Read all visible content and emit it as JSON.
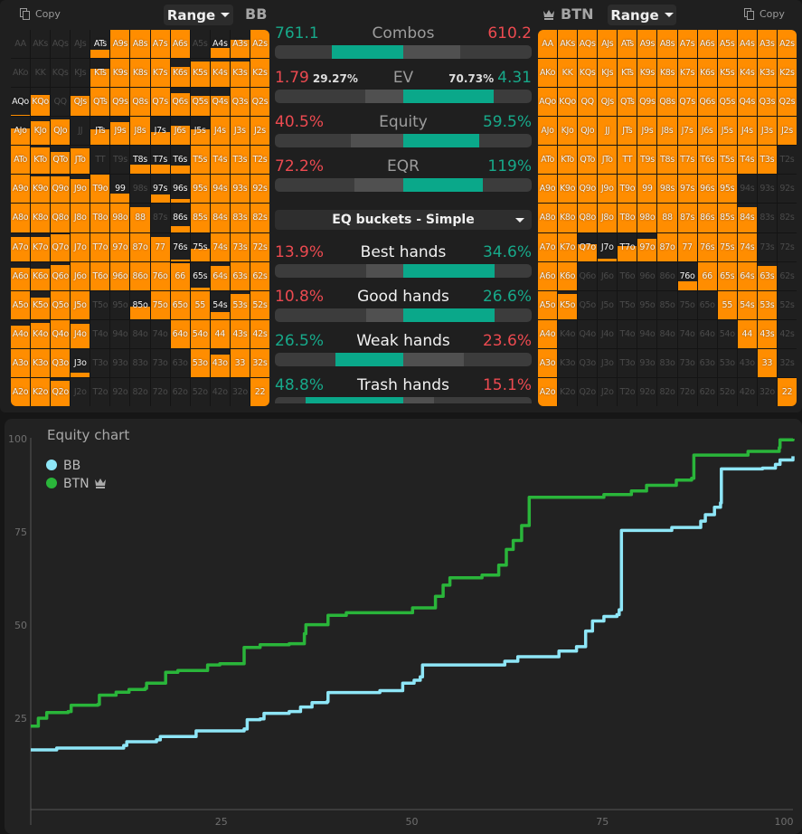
{
  "left": {
    "copy_label": "Copy",
    "range_label": "Range",
    "position": "BB",
    "copy_icon": "copy-icon",
    "fills": [
      [
        0,
        0,
        0,
        0,
        0.3,
        1,
        1,
        1,
        1,
        0,
        0.35,
        0.65,
        1
      ],
      [
        0,
        0,
        0,
        0,
        0.65,
        1,
        1,
        1,
        0.7,
        0.9,
        0.9,
        0.9,
        1
      ],
      [
        0.05,
        0.75,
        0,
        0.7,
        1,
        1,
        1,
        1,
        0.8,
        0.7,
        0.7,
        1,
        1
      ],
      [
        0.6,
        0.85,
        0.9,
        0,
        0.55,
        0.8,
        1,
        0.45,
        0.7,
        0.55,
        1,
        1,
        1
      ],
      [
        1,
        0.95,
        0.8,
        0.9,
        0,
        0,
        0.35,
        0.35,
        0.3,
        1,
        1,
        1,
        1
      ],
      [
        1,
        0.95,
        0.95,
        0.85,
        1,
        0.35,
        0,
        0.3,
        0.15,
        1,
        1,
        1,
        1
      ],
      [
        1,
        1,
        1,
        1,
        1,
        1,
        0.9,
        0,
        0.2,
        1,
        1,
        1,
        1
      ],
      [
        0.85,
        0.85,
        0.95,
        1,
        1,
        1,
        1,
        0.85,
        0.05,
        0.45,
        1,
        1,
        1
      ],
      [
        0.8,
        0.75,
        0.9,
        1,
        1,
        1,
        1,
        1,
        0.95,
        0.1,
        0.85,
        1,
        1
      ],
      [
        1,
        0.75,
        1,
        1,
        0,
        0,
        0.45,
        1,
        1,
        1,
        0.25,
        0.9,
        1
      ],
      [
        0.8,
        0.9,
        1,
        0.85,
        0,
        0,
        0,
        0,
        1,
        1,
        1,
        1,
        1
      ],
      [
        1,
        1,
        1,
        0.15,
        0,
        0,
        0,
        0,
        0,
        1,
        0.8,
        1,
        1
      ],
      [
        1,
        1,
        0.9,
        0,
        0,
        0,
        0,
        0,
        0,
        0,
        0,
        0,
        1
      ]
    ]
  },
  "right": {
    "copy_label": "Copy",
    "range_label": "Range",
    "position": "BTN",
    "crown_icon": "crown-icon",
    "fills": [
      [
        1,
        1,
        1,
        1,
        1,
        1,
        1,
        1,
        1,
        1,
        1,
        1,
        1
      ],
      [
        1,
        1,
        1,
        1,
        1,
        1,
        1,
        1,
        1,
        1,
        1,
        1,
        1
      ],
      [
        1,
        1,
        1,
        1,
        1,
        1,
        1,
        1,
        1,
        1,
        1,
        1,
        1
      ],
      [
        1,
        1,
        1,
        1,
        1,
        1,
        1,
        1,
        1,
        1,
        1,
        1,
        1
      ],
      [
        1,
        1,
        1,
        1,
        1,
        1,
        1,
        1,
        1,
        1,
        1,
        1,
        0
      ],
      [
        1,
        1,
        1,
        1,
        1,
        1,
        1,
        1,
        1,
        1,
        0,
        0,
        0
      ],
      [
        1,
        1,
        1,
        1,
        1,
        1,
        1,
        1,
        1,
        1,
        0.9,
        0,
        0
      ],
      [
        1,
        1,
        0.6,
        0.1,
        0.55,
        0.8,
        1,
        1,
        1,
        1,
        1,
        0,
        0
      ],
      [
        1,
        1,
        0,
        0,
        0,
        0,
        0,
        0.3,
        1,
        1,
        1,
        0.85,
        0
      ],
      [
        1,
        0.9,
        0,
        0,
        0,
        0,
        0,
        0,
        0,
        1,
        1,
        1,
        0
      ],
      [
        1,
        0,
        0,
        0,
        0,
        0,
        0,
        0,
        0,
        0,
        1,
        1,
        0
      ],
      [
        1,
        0,
        0,
        0,
        0,
        0,
        0,
        0,
        0,
        0,
        0,
        1,
        0
      ],
      [
        1,
        0,
        0,
        0,
        0,
        0,
        0,
        0,
        0,
        0,
        0,
        0,
        1
      ]
    ]
  },
  "hands": [
    [
      "AA",
      "AKs",
      "AQs",
      "AJs",
      "ATs",
      "A9s",
      "A8s",
      "A7s",
      "A6s",
      "A5s",
      "A4s",
      "A3s",
      "A2s"
    ],
    [
      "AKo",
      "KK",
      "KQs",
      "KJs",
      "KTs",
      "K9s",
      "K8s",
      "K7s",
      "K6s",
      "K5s",
      "K4s",
      "K3s",
      "K2s"
    ],
    [
      "AQo",
      "KQo",
      "QQ",
      "QJs",
      "QTs",
      "Q9s",
      "Q8s",
      "Q7s",
      "Q6s",
      "Q5s",
      "Q4s",
      "Q3s",
      "Q2s"
    ],
    [
      "AJo",
      "KJo",
      "QJo",
      "JJ",
      "JTs",
      "J9s",
      "J8s",
      "J7s",
      "J6s",
      "J5s",
      "J4s",
      "J3s",
      "J2s"
    ],
    [
      "ATo",
      "KTo",
      "QTo",
      "JTo",
      "TT",
      "T9s",
      "T8s",
      "T7s",
      "T6s",
      "T5s",
      "T4s",
      "T3s",
      "T2s"
    ],
    [
      "A9o",
      "K9o",
      "Q9o",
      "J9o",
      "T9o",
      "99",
      "98s",
      "97s",
      "96s",
      "95s",
      "94s",
      "93s",
      "92s"
    ],
    [
      "A8o",
      "K8o",
      "Q8o",
      "J8o",
      "T8o",
      "98o",
      "88",
      "87s",
      "86s",
      "85s",
      "84s",
      "83s",
      "82s"
    ],
    [
      "A7o",
      "K7o",
      "Q7o",
      "J7o",
      "T7o",
      "97o",
      "87o",
      "77",
      "76s",
      "75s",
      "74s",
      "73s",
      "72s"
    ],
    [
      "A6o",
      "K6o",
      "Q6o",
      "J6o",
      "T6o",
      "96o",
      "86o",
      "76o",
      "66",
      "65s",
      "64s",
      "63s",
      "62s"
    ],
    [
      "A5o",
      "K5o",
      "Q5o",
      "J5o",
      "T5o",
      "95o",
      "85o",
      "75o",
      "65o",
      "55",
      "54s",
      "53s",
      "52s"
    ],
    [
      "A4o",
      "K4o",
      "Q4o",
      "J4o",
      "T4o",
      "94o",
      "84o",
      "74o",
      "64o",
      "54o",
      "44",
      "43s",
      "42s"
    ],
    [
      "A3o",
      "K3o",
      "Q3o",
      "J3o",
      "T3o",
      "93o",
      "83o",
      "73o",
      "63o",
      "53o",
      "43o",
      "33",
      "32s"
    ],
    [
      "A2o",
      "K2o",
      "Q2o",
      "J2o",
      "T2o",
      "92o",
      "82o",
      "72o",
      "62o",
      "52o",
      "42o",
      "32o",
      "22"
    ]
  ],
  "stats": [
    {
      "label": "Combos",
      "left": "761.1",
      "right": "610.2",
      "lv": 761.1,
      "rv": 610.2,
      "lc": "teal",
      "rc": "red"
    },
    {
      "label": "EV",
      "left": "1.79",
      "right": "4.31",
      "left_pct": "29.27%",
      "right_pct": "70.73%",
      "lv": 29.27,
      "rv": 70.73,
      "lc": "red",
      "rc": "teal"
    },
    {
      "label": "Equity",
      "left": "40.5%",
      "right": "59.5%",
      "lv": 40.5,
      "rv": 59.5,
      "lc": "red",
      "rc": "teal"
    },
    {
      "label": "EQR",
      "left": "72.2%",
      "right": "119%",
      "lv": 72.2,
      "rv": 119,
      "lc": "red",
      "rc": "teal"
    }
  ],
  "bucket_select": "EQ buckets - Simple",
  "buckets": [
    {
      "label": "Best hands",
      "left": "13.9%",
      "right": "34.6%",
      "lv": 13.9,
      "rv": 34.6,
      "lc": "red",
      "rc": "teal"
    },
    {
      "label": "Good hands",
      "left": "10.8%",
      "right": "26.6%",
      "lv": 10.8,
      "rv": 26.6,
      "lc": "red",
      "rc": "teal"
    },
    {
      "label": "Weak hands",
      "left": "26.5%",
      "right": "23.6%",
      "lv": 26.5,
      "rv": 23.6,
      "lc": "teal",
      "rc": "red"
    },
    {
      "label": "Trash hands",
      "left": "48.8%",
      "right": "15.1%",
      "lv": 48.8,
      "rv": 15.1,
      "lc": "teal",
      "rc": "red"
    }
  ],
  "colors": {
    "range": "#ff8d00",
    "red": "#ec4a50",
    "teal": "#17a98a",
    "bb": "#8ee6f7",
    "btn": "#2ab53a"
  },
  "chart_data": {
    "type": "line",
    "title": "Equity chart",
    "xlim": [
      0,
      100
    ],
    "ylim": [
      0,
      100
    ],
    "xticks": [
      "25",
      "50",
      "75",
      "100"
    ],
    "yticks": [
      "25",
      "50",
      "75",
      "100"
    ],
    "grid": false,
    "legend": "top-left",
    "series": [
      {
        "name": "BB",
        "color": "#8ee6f7",
        "points": [
          [
            0,
            16.5
          ],
          [
            3.4,
            17
          ],
          [
            12.2,
            17.7
          ],
          [
            12.6,
            18.7
          ],
          [
            16.5,
            19.2
          ],
          [
            17,
            20.1
          ],
          [
            21.7,
            21.6
          ],
          [
            28,
            22.1
          ],
          [
            28.4,
            24.6
          ],
          [
            30.1,
            24.8
          ],
          [
            30.6,
            26.3
          ],
          [
            33.9,
            26.8
          ],
          [
            35.4,
            28
          ],
          [
            36.9,
            29.2
          ],
          [
            38.9,
            29.5
          ],
          [
            39,
            31.9
          ],
          [
            45.8,
            32.4
          ],
          [
            48.8,
            34.4
          ],
          [
            50.3,
            35.2
          ],
          [
            51.1,
            36.1
          ],
          [
            51.4,
            39.3
          ],
          [
            62.2,
            40.3
          ],
          [
            63.9,
            41.5
          ],
          [
            69.3,
            43
          ],
          [
            71.6,
            44.2
          ],
          [
            72.8,
            48.4
          ],
          [
            73.7,
            51.1
          ],
          [
            75.2,
            52.3
          ],
          [
            76.9,
            52.8
          ],
          [
            77.2,
            54.1
          ],
          [
            77.5,
            75.4
          ],
          [
            84.1,
            76.2
          ],
          [
            87.9,
            77.9
          ],
          [
            88.5,
            79.6
          ],
          [
            89.7,
            81.6
          ],
          [
            90.5,
            82.8
          ],
          [
            90.6,
            91.9
          ],
          [
            96,
            92.1
          ],
          [
            97.7,
            93.1
          ],
          [
            98.3,
            94.3
          ],
          [
            100,
            95.3
          ]
        ]
      },
      {
        "name": "BTN",
        "color": "#2ab53a",
        "points": [
          [
            0,
            22.9
          ],
          [
            1,
            25
          ],
          [
            2.1,
            26.5
          ],
          [
            4.9,
            26.8
          ],
          [
            5.3,
            28.5
          ],
          [
            8.8,
            28.7
          ],
          [
            9,
            31.2
          ],
          [
            11.2,
            32
          ],
          [
            12.9,
            32.7
          ],
          [
            15,
            33
          ],
          [
            15.2,
            34.4
          ],
          [
            17.7,
            37.3
          ],
          [
            19.3,
            37.8
          ],
          [
            23.2,
            39.3
          ],
          [
            24.8,
            39.6
          ],
          [
            28,
            44
          ],
          [
            30.1,
            44.7
          ],
          [
            33.9,
            45
          ],
          [
            35.9,
            47.7
          ],
          [
            36.1,
            50.1
          ],
          [
            39,
            52.6
          ],
          [
            41.4,
            53.3
          ],
          [
            50.1,
            54.6
          ],
          [
            53.1,
            57.7
          ],
          [
            54.1,
            60.7
          ],
          [
            55,
            62.7
          ],
          [
            59.2,
            63.4
          ],
          [
            61.4,
            66.1
          ],
          [
            62.4,
            70.3
          ],
          [
            63.3,
            72.7
          ],
          [
            64.4,
            76.7
          ],
          [
            65.4,
            84.3
          ],
          [
            75.2,
            85
          ],
          [
            78.8,
            86
          ],
          [
            80.8,
            87.5
          ],
          [
            84.7,
            88.9
          ],
          [
            86.7,
            89.4
          ],
          [
            87,
            95.6
          ],
          [
            94.1,
            96.6
          ],
          [
            98.2,
            97.6
          ],
          [
            98.3,
            99.7
          ],
          [
            100,
            100
          ]
        ]
      }
    ]
  }
}
